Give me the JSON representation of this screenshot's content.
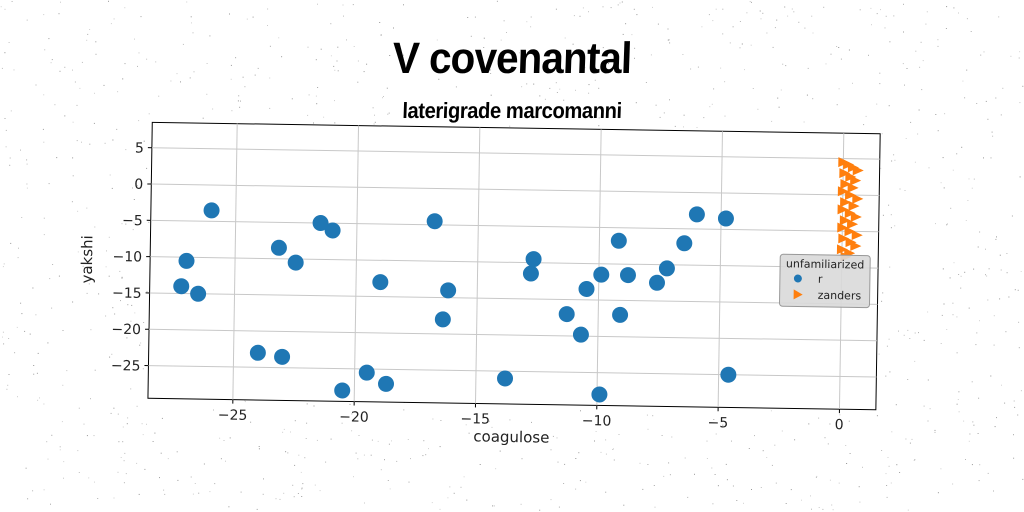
{
  "chart_data": {
    "type": "scatter",
    "title": "V covenantal",
    "subtitle": "laterigrade marcomanni",
    "xlabel": "coagulose",
    "ylabel": "yakshi",
    "xlim": [
      -28.5,
      1.5
    ],
    "ylim": [
      -29.5,
      8.5
    ],
    "xticks": [
      -25,
      -20,
      -15,
      -10,
      -5,
      0
    ],
    "yticks": [
      5,
      0,
      -5,
      -10,
      -15,
      -20,
      -25
    ],
    "grid": true,
    "legend": {
      "title": "unfamiliarized",
      "placement": "right"
    },
    "series": [
      {
        "name": "r",
        "marker": "circle",
        "color": "#1f77b4",
        "points": [
          [
            -26.0,
            -3.5
          ],
          [
            -27.0,
            -10.5
          ],
          [
            -27.2,
            -14.0
          ],
          [
            -26.5,
            -15.0
          ],
          [
            -23.2,
            -8.5
          ],
          [
            -22.5,
            -10.5
          ],
          [
            -21.5,
            -5.0
          ],
          [
            -21.0,
            -6.0
          ],
          [
            -24.0,
            -23.0
          ],
          [
            -23.0,
            -23.5
          ],
          [
            -20.5,
            -28.0
          ],
          [
            -19.5,
            -25.5
          ],
          [
            -18.7,
            -27.0
          ],
          [
            -19.0,
            -13.0
          ],
          [
            -16.8,
            -4.5
          ],
          [
            -16.2,
            -14.0
          ],
          [
            -16.4,
            -18.0
          ],
          [
            -13.8,
            -26.0
          ],
          [
            -12.8,
            -11.5
          ],
          [
            -12.7,
            -9.5
          ],
          [
            -11.3,
            -17.0
          ],
          [
            -10.7,
            -19.8
          ],
          [
            -10.5,
            -13.5
          ],
          [
            -9.9,
            -11.5
          ],
          [
            -9.9,
            -28.0
          ],
          [
            -9.2,
            -6.8
          ],
          [
            -9.1,
            -17.0
          ],
          [
            -8.8,
            -11.5
          ],
          [
            -7.6,
            -12.5
          ],
          [
            -7.2,
            -10.5
          ],
          [
            -6.5,
            -7.0
          ],
          [
            -6.0,
            -3.0
          ],
          [
            -4.8,
            -3.5
          ],
          [
            -4.6,
            -25.0
          ]
        ]
      },
      {
        "name": "zanders",
        "marker": "triangle-right",
        "color": "#ff7f0e",
        "points": [
          [
            0.0,
            4.5
          ],
          [
            0.2,
            4.2
          ],
          [
            0.4,
            3.8
          ],
          [
            0.6,
            3.4
          ],
          [
            0.05,
            3.0
          ],
          [
            0.3,
            2.5
          ],
          [
            0.5,
            2.0
          ],
          [
            0.1,
            1.5
          ],
          [
            0.4,
            1.0
          ],
          [
            0.0,
            0.5
          ],
          [
            0.3,
            0.0
          ],
          [
            0.6,
            -0.5
          ],
          [
            0.1,
            -1.0
          ],
          [
            0.45,
            -1.5
          ],
          [
            0.0,
            -2.0
          ],
          [
            0.3,
            -2.5
          ],
          [
            0.55,
            -3.0
          ],
          [
            0.1,
            -3.5
          ],
          [
            0.4,
            -4.0
          ],
          [
            0.0,
            -4.5
          ],
          [
            0.3,
            -5.0
          ],
          [
            0.6,
            -5.5
          ],
          [
            0.05,
            -6.0
          ],
          [
            0.35,
            -6.5
          ],
          [
            0.55,
            -7.0
          ],
          [
            0.0,
            -7.5
          ],
          [
            0.3,
            -8.0
          ],
          [
            0.15,
            -8.5
          ]
        ]
      }
    ]
  }
}
